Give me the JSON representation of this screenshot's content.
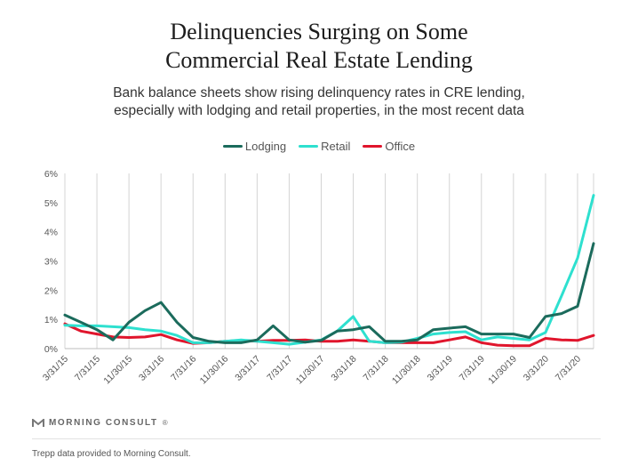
{
  "title_line1": "Delinquencies Surging on Some",
  "title_line2": "Commercial Real Estate Lending",
  "subtitle_line1": "Bank balance sheets show rising delinquency rates in CRE lending,",
  "subtitle_line2": "especially with lodging and retail properties, in the most recent data",
  "brand": "MORNING CONSULT",
  "brand_trademark": "®",
  "footnote": "Trepp data provided to Morning Consult.",
  "colors": {
    "Lodging": "#1b6b5c",
    "Retail": "#2ee0cf",
    "Office": "#e0152c"
  },
  "chart_data": {
    "type": "line",
    "title": "Delinquencies Surging on Some Commercial Real Estate Lending",
    "xlabel": "",
    "ylabel": "",
    "ylim": [
      0,
      6
    ],
    "yticks": [
      "0%",
      "1%",
      "2%",
      "3%",
      "4%",
      "5%",
      "6%"
    ],
    "grid": "vertical",
    "legend": "top-center",
    "x": [
      "3/31/15",
      "5/31/15",
      "7/31/15",
      "9/30/15",
      "11/30/15",
      "1/31/16",
      "3/31/16",
      "5/31/16",
      "7/31/16",
      "9/30/16",
      "11/30/16",
      "1/31/17",
      "3/31/17",
      "5/31/17",
      "7/31/17",
      "9/30/17",
      "11/30/17",
      "1/31/18",
      "3/31/18",
      "5/31/18",
      "7/31/18",
      "9/30/18",
      "11/30/18",
      "1/31/19",
      "3/31/19",
      "5/31/19",
      "7/31/19",
      "9/30/19",
      "11/30/19",
      "1/31/20",
      "3/31/20",
      "5/31/20",
      "7/31/20",
      "9/30/20"
    ],
    "xticks": [
      "3/31/15",
      "7/31/15",
      "11/30/15",
      "3/31/16",
      "7/31/16",
      "11/30/16",
      "3/31/17",
      "7/31/17",
      "11/30/17",
      "3/31/18",
      "7/31/18",
      "11/30/18",
      "3/31/19",
      "7/31/19",
      "11/30/19",
      "3/31/20",
      "7/31/20"
    ],
    "series": [
      {
        "name": "Lodging",
        "values": [
          1.15,
          0.9,
          0.65,
          0.3,
          0.9,
          1.3,
          1.58,
          0.9,
          0.38,
          0.25,
          0.2,
          0.2,
          0.3,
          0.78,
          0.3,
          0.22,
          0.28,
          0.6,
          0.65,
          0.75,
          0.25,
          0.25,
          0.3,
          0.65,
          0.7,
          0.75,
          0.5,
          0.5,
          0.5,
          0.38,
          1.1,
          1.2,
          1.45,
          3.6
        ]
      },
      {
        "name": "Retail",
        "values": [
          0.8,
          0.78,
          0.78,
          0.75,
          0.72,
          0.65,
          0.6,
          0.45,
          0.2,
          0.2,
          0.25,
          0.3,
          0.25,
          0.2,
          0.15,
          0.22,
          0.3,
          0.6,
          1.1,
          0.25,
          0.2,
          0.22,
          0.35,
          0.5,
          0.55,
          0.58,
          0.3,
          0.4,
          0.35,
          0.3,
          0.55,
          1.8,
          3.1,
          5.25
        ]
      },
      {
        "name": "Office",
        "values": [
          0.85,
          0.6,
          0.5,
          0.4,
          0.38,
          0.4,
          0.48,
          0.3,
          0.18,
          0.2,
          0.25,
          0.28,
          0.25,
          0.28,
          0.28,
          0.3,
          0.25,
          0.25,
          0.3,
          0.25,
          0.2,
          0.2,
          0.2,
          0.2,
          0.3,
          0.4,
          0.2,
          0.12,
          0.1,
          0.1,
          0.35,
          0.3,
          0.28,
          0.45
        ]
      }
    ]
  }
}
